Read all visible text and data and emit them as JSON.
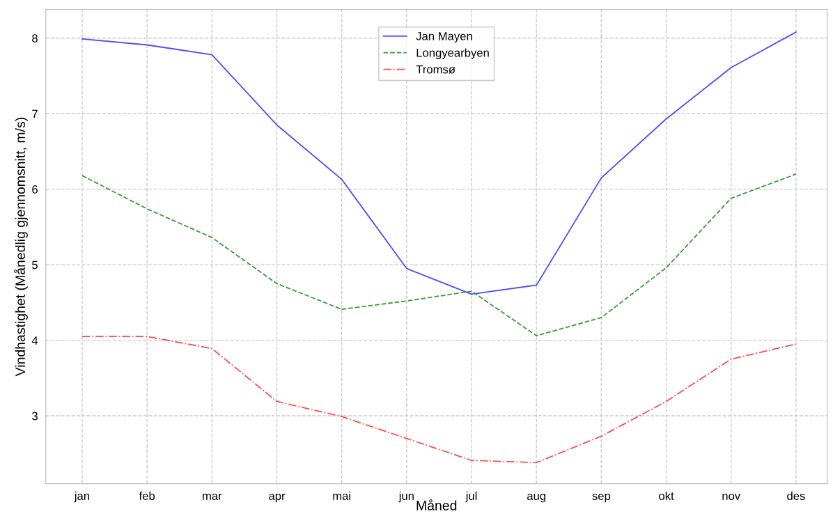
{
  "chart_data": {
    "type": "line",
    "xlabel": "Måned",
    "ylabel": "Vindhastighet (Månedlig gjennomsnitt, m/s)",
    "categories": [
      "jan",
      "feb",
      "mar",
      "apr",
      "mai",
      "jun",
      "jul",
      "aug",
      "sep",
      "okt",
      "nov",
      "des"
    ],
    "series": [
      {
        "name": "Jan Mayen",
        "color": "#4d4dff",
        "line_style": "solid",
        "values": [
          7.99,
          7.91,
          7.78,
          6.85,
          6.13,
          4.95,
          4.61,
          4.73,
          6.15,
          6.93,
          7.61,
          8.08
        ]
      },
      {
        "name": "Longyearbyen",
        "color": "#3a9a3a",
        "line_style": "dashed",
        "values": [
          6.18,
          5.74,
          5.36,
          4.75,
          4.41,
          4.52,
          4.65,
          4.06,
          4.3,
          4.96,
          5.88,
          6.2
        ]
      },
      {
        "name": "Tromsø",
        "color": "#ff4d4d",
        "line_style": "dashdot",
        "values": [
          4.05,
          4.05,
          3.89,
          3.19,
          2.99,
          2.7,
          2.41,
          2.38,
          2.73,
          3.19,
          3.75,
          3.95
        ]
      }
    ],
    "ylim": [
      2.1,
      8.38
    ],
    "yticks": [
      3,
      4,
      5,
      6,
      7,
      8
    ],
    "grid": true,
    "legend": "top center",
    "marker": "none"
  }
}
